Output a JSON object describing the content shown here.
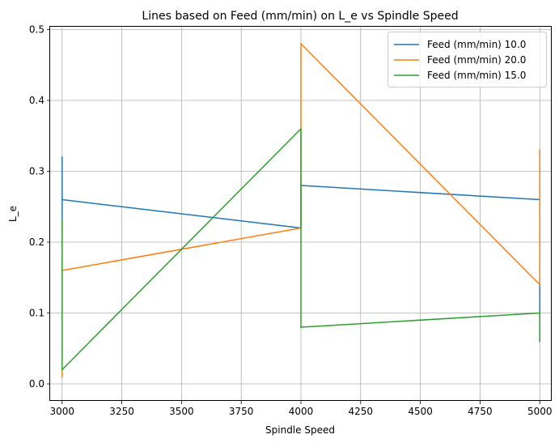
{
  "chart_data": {
    "type": "line",
    "title": "Lines based on Feed (mm/min) on L_e vs Spindle Speed",
    "xlabel": "Spindle Speed",
    "ylabel": "L_e",
    "xlim": [
      2950,
      5050
    ],
    "ylim": [
      -0.024,
      0.504
    ],
    "xticks": [
      3000,
      3250,
      3500,
      3750,
      4000,
      4250,
      4500,
      4750,
      5000
    ],
    "xtick_labels": [
      "3000",
      "3250",
      "3500",
      "3750",
      "4000",
      "4250",
      "4500",
      "4750",
      "5000"
    ],
    "yticks": [
      0.0,
      0.1,
      0.2,
      0.3,
      0.4,
      0.5
    ],
    "ytick_labels": [
      "0.0",
      "0.1",
      "0.2",
      "0.3",
      "0.4",
      "0.5"
    ],
    "grid": true,
    "legend_position": "top-right",
    "series": [
      {
        "name": "Feed (mm/min) 10.0",
        "color": "#1f77b4",
        "x": [
          3000,
          3000,
          3000,
          3000,
          3000,
          4000,
          4000,
          4000,
          5000,
          5000
        ],
        "y": [
          0.32,
          0.06,
          0.32,
          0.26,
          0.26,
          0.22,
          0.28,
          0.28,
          0.26,
          0.06
        ]
      },
      {
        "name": "Feed (mm/min) 20.0",
        "color": "#ff7f0e",
        "x": [
          3000,
          3000,
          3000,
          3000,
          4000,
          4000,
          4000,
          5000,
          5000,
          5000
        ],
        "y": [
          0.01,
          0.21,
          0.01,
          0.16,
          0.22,
          0.48,
          0.48,
          0.14,
          0.33,
          0.14
        ]
      },
      {
        "name": "Feed (mm/min) 15.0",
        "color": "#2ca02c",
        "x": [
          3000,
          3000,
          3000,
          3000,
          4000,
          4000,
          4000,
          4000,
          5000,
          5000
        ],
        "y": [
          0.23,
          0.02,
          0.02,
          0.02,
          0.36,
          0.08,
          0.08,
          0.08,
          0.1,
          0.06
        ]
      }
    ]
  }
}
